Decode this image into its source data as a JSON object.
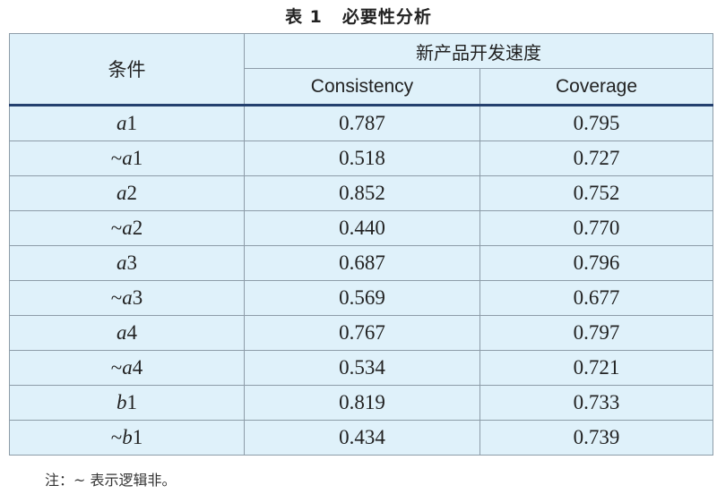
{
  "title": {
    "label": "表 1",
    "text": "必要性分析"
  },
  "table": {
    "condition_header": "条件",
    "group_header": "新产品开发速度",
    "columns": [
      "Consistency",
      "Coverage"
    ],
    "rows": [
      {
        "neg": "",
        "var": "a",
        "num": "1",
        "consistency": "0.787",
        "coverage": "0.795"
      },
      {
        "neg": "~",
        "var": "a",
        "num": "1",
        "consistency": "0.518",
        "coverage": "0.727"
      },
      {
        "neg": "",
        "var": "a",
        "num": "2",
        "consistency": "0.852",
        "coverage": "0.752"
      },
      {
        "neg": "~",
        "var": "a",
        "num": "2",
        "consistency": "0.440",
        "coverage": "0.770"
      },
      {
        "neg": "",
        "var": "a",
        "num": "3",
        "consistency": "0.687",
        "coverage": "0.796"
      },
      {
        "neg": "~",
        "var": "a",
        "num": "3",
        "consistency": "0.569",
        "coverage": "0.677"
      },
      {
        "neg": "",
        "var": "a",
        "num": "4",
        "consistency": "0.767",
        "coverage": "0.797"
      },
      {
        "neg": "~",
        "var": "a",
        "num": "4",
        "consistency": "0.534",
        "coverage": "0.721"
      },
      {
        "neg": "",
        "var": "b",
        "num": "1",
        "consistency": "0.819",
        "coverage": "0.733"
      },
      {
        "neg": "~",
        "var": "b",
        "num": "1",
        "consistency": "0.434",
        "coverage": "0.739"
      }
    ]
  },
  "note": "注：~ 表示逻辑非。",
  "colors": {
    "table_background": "#dff1fa",
    "header_rule": "#24406e",
    "grid_lines": "#8d9ca8"
  }
}
